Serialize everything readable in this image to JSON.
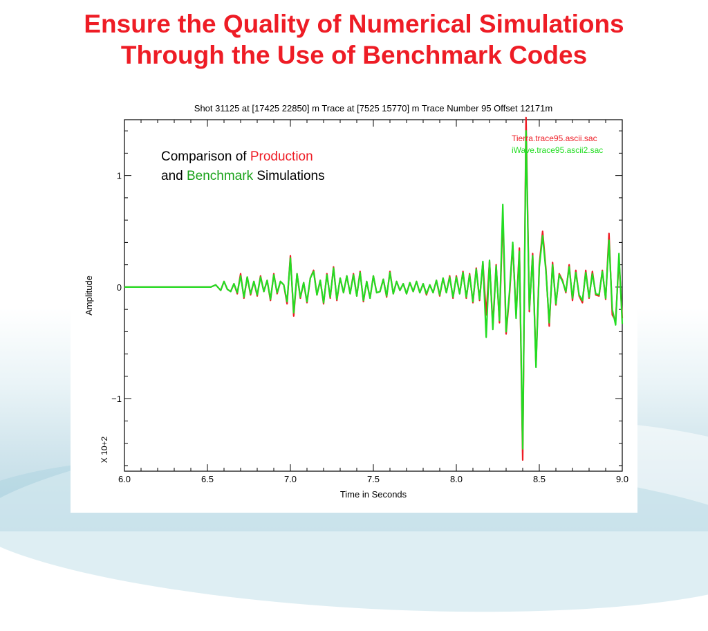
{
  "slide": {
    "title_line1": "Ensure the Quality of Numerical Simulations",
    "title_line2": "Through the Use of Benchmark Codes"
  },
  "annotation": {
    "prefix": "Comparison of ",
    "production": "Production",
    "line2_prefix": "and ",
    "benchmark": "Benchmark",
    "suffix": " Simulations"
  },
  "colors": {
    "title": "#ee1c25",
    "production": "#ee1c25",
    "benchmark": "#22dd22"
  },
  "chart_data": {
    "type": "line",
    "title": "Shot  31125  at  [17425  22850]  m   Trace  at  [7525  15770]  m  Trace  Number  95    Offset  12171m",
    "xlabel": "Time  in  Seconds",
    "ylabel": "Amplitude",
    "scale_note": "X  10+2",
    "xlim": [
      6.0,
      9.0
    ],
    "ylim": [
      -1.65,
      1.5
    ],
    "x_ticks": [
      6.0,
      6.5,
      7.0,
      7.5,
      8.0,
      8.5,
      9.0
    ],
    "x_tick_labels": [
      "6.0",
      "6.5",
      "7.0",
      "7.5",
      "8.0",
      "8.5",
      "9.0"
    ],
    "y_ticks": [
      1,
      0,
      -1
    ],
    "y_tick_labels": [
      "1",
      "0",
      "−1"
    ],
    "series": [
      {
        "name": "Tierra.trace95.ascii.sac",
        "color": "#ee1c25",
        "x": [
          6.0,
          6.52,
          6.55,
          6.58,
          6.6,
          6.62,
          6.64,
          6.66,
          6.68,
          6.7,
          6.72,
          6.74,
          6.76,
          6.78,
          6.8,
          6.82,
          6.84,
          6.86,
          6.88,
          6.9,
          6.92,
          6.94,
          6.96,
          6.98,
          7.0,
          7.02,
          7.04,
          7.06,
          7.08,
          7.1,
          7.12,
          7.14,
          7.16,
          7.18,
          7.2,
          7.22,
          7.24,
          7.26,
          7.28,
          7.3,
          7.32,
          7.34,
          7.36,
          7.38,
          7.4,
          7.42,
          7.44,
          7.46,
          7.48,
          7.5,
          7.52,
          7.54,
          7.56,
          7.58,
          7.6,
          7.62,
          7.64,
          7.66,
          7.68,
          7.7,
          7.72,
          7.74,
          7.76,
          7.78,
          7.8,
          7.82,
          7.84,
          7.86,
          7.88,
          7.9,
          7.92,
          7.94,
          7.96,
          7.98,
          8.0,
          8.02,
          8.04,
          8.06,
          8.08,
          8.1,
          8.12,
          8.14,
          8.16,
          8.18,
          8.2,
          8.22,
          8.24,
          8.26,
          8.28,
          8.3,
          8.32,
          8.34,
          8.36,
          8.38,
          8.4,
          8.42,
          8.44,
          8.46,
          8.48,
          8.5,
          8.52,
          8.54,
          8.56,
          8.58,
          8.6,
          8.62,
          8.64,
          8.66,
          8.68,
          8.7,
          8.72,
          8.74,
          8.76,
          8.78,
          8.8,
          8.82,
          8.84,
          8.86,
          8.88,
          8.9,
          8.92,
          8.94,
          8.96,
          8.98,
          9.0
        ],
        "y": [
          0,
          0,
          0.02,
          -0.03,
          0.05,
          -0.02,
          -0.04,
          0.03,
          -0.06,
          0.12,
          -0.1,
          0.09,
          -0.07,
          0.05,
          -0.08,
          0.1,
          -0.04,
          0.06,
          -0.12,
          0.12,
          -0.06,
          0.05,
          0.02,
          -0.15,
          0.28,
          -0.26,
          0.12,
          -0.1,
          0.04,
          -0.14,
          0.08,
          0.15,
          -0.07,
          0.06,
          -0.15,
          0.12,
          -0.1,
          0.18,
          -0.12,
          0.08,
          -0.05,
          0.1,
          -0.06,
          0.12,
          -0.08,
          0.14,
          -0.13,
          0.05,
          -0.1,
          0.1,
          -0.05,
          -0.04,
          0.07,
          -0.09,
          0.14,
          -0.06,
          0.05,
          -0.03,
          0.03,
          -0.06,
          0.04,
          -0.04,
          0.05,
          -0.05,
          0.03,
          -0.07,
          0.02,
          -0.05,
          0.06,
          -0.08,
          0.08,
          -0.05,
          0.1,
          -0.1,
          0.1,
          -0.06,
          0.14,
          -0.1,
          0.12,
          -0.14,
          0.17,
          -0.12,
          0.22,
          -0.25,
          0.23,
          -0.35,
          0.2,
          -0.32,
          0.65,
          -0.42,
          -0.08,
          0.38,
          -0.25,
          0.35,
          -1.55,
          1.52,
          -0.22,
          0.3,
          -0.7,
          0.2,
          0.5,
          0.16,
          -0.35,
          0.22,
          -0.16,
          0.12,
          0.06,
          -0.05,
          0.2,
          -0.12,
          0.15,
          -0.08,
          -0.14,
          0.15,
          -0.1,
          0.14,
          -0.07,
          -0.08,
          0.15,
          -0.11,
          0.48,
          -0.25,
          -0.3,
          0.25,
          -0.28
        ]
      },
      {
        "name": "iWave.trace95.ascii2.sac",
        "color": "#22dd22",
        "x": [
          6.0,
          6.52,
          6.55,
          6.58,
          6.6,
          6.62,
          6.64,
          6.66,
          6.68,
          6.7,
          6.72,
          6.74,
          6.76,
          6.78,
          6.8,
          6.82,
          6.84,
          6.86,
          6.88,
          6.9,
          6.92,
          6.94,
          6.96,
          6.98,
          7.0,
          7.02,
          7.04,
          7.06,
          7.08,
          7.1,
          7.12,
          7.14,
          7.16,
          7.18,
          7.2,
          7.22,
          7.24,
          7.26,
          7.28,
          7.3,
          7.32,
          7.34,
          7.36,
          7.38,
          7.4,
          7.42,
          7.44,
          7.46,
          7.48,
          7.5,
          7.52,
          7.54,
          7.56,
          7.58,
          7.6,
          7.62,
          7.64,
          7.66,
          7.68,
          7.7,
          7.72,
          7.74,
          7.76,
          7.78,
          7.8,
          7.82,
          7.84,
          7.86,
          7.88,
          7.9,
          7.92,
          7.94,
          7.96,
          7.98,
          8.0,
          8.02,
          8.04,
          8.06,
          8.08,
          8.1,
          8.12,
          8.14,
          8.16,
          8.18,
          8.2,
          8.22,
          8.24,
          8.26,
          8.28,
          8.3,
          8.32,
          8.34,
          8.36,
          8.38,
          8.4,
          8.42,
          8.44,
          8.46,
          8.48,
          8.5,
          8.52,
          8.54,
          8.56,
          8.58,
          8.6,
          8.62,
          8.64,
          8.66,
          8.68,
          8.7,
          8.72,
          8.74,
          8.76,
          8.78,
          8.8,
          8.82,
          8.84,
          8.86,
          8.88,
          8.9,
          8.92,
          8.94,
          8.96,
          8.98,
          9.0
        ],
        "y": [
          0,
          0,
          0.02,
          -0.03,
          0.05,
          -0.02,
          -0.04,
          0.03,
          -0.05,
          0.1,
          -0.09,
          0.09,
          -0.06,
          0.05,
          -0.07,
          0.09,
          -0.04,
          0.06,
          -0.11,
          0.11,
          -0.05,
          0.05,
          0.02,
          -0.13,
          0.26,
          -0.23,
          0.12,
          -0.09,
          0.04,
          -0.13,
          0.08,
          0.14,
          -0.07,
          0.06,
          -0.14,
          0.11,
          -0.09,
          0.17,
          -0.11,
          0.08,
          -0.05,
          0.1,
          -0.06,
          0.11,
          -0.08,
          0.13,
          -0.12,
          0.05,
          -0.1,
          0.1,
          -0.05,
          -0.04,
          0.07,
          -0.08,
          0.13,
          -0.06,
          0.05,
          -0.03,
          0.03,
          -0.06,
          0.04,
          -0.04,
          0.05,
          -0.05,
          0.03,
          -0.06,
          0.02,
          -0.05,
          0.06,
          -0.07,
          0.08,
          -0.05,
          0.09,
          -0.09,
          0.09,
          -0.06,
          0.13,
          -0.09,
          0.11,
          -0.13,
          0.16,
          -0.11,
          0.23,
          -0.45,
          0.24,
          -0.38,
          0.19,
          -0.3,
          0.74,
          -0.4,
          -0.05,
          0.4,
          -0.28,
          0.32,
          -1.45,
          1.4,
          -0.2,
          0.28,
          -0.72,
          0.18,
          0.46,
          0.14,
          -0.32,
          0.2,
          -0.15,
          0.11,
          0.05,
          -0.04,
          0.18,
          -0.1,
          0.13,
          -0.07,
          -0.12,
          0.13,
          -0.09,
          0.12,
          -0.06,
          -0.07,
          0.14,
          -0.1,
          0.42,
          -0.2,
          -0.34,
          0.3,
          -0.33
        ]
      }
    ]
  }
}
